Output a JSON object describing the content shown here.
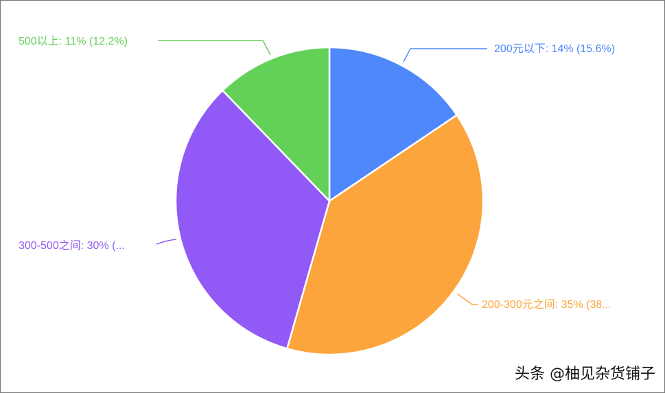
{
  "chart_data": {
    "type": "pie",
    "title": "",
    "start_angle": "top, clockwise",
    "slices": [
      {
        "label": "200元以下",
        "value": 14,
        "percent": 15.6,
        "display": "200元以下: 14% (15.6%)",
        "color": "#4f88fb"
      },
      {
        "label": "200-300元之间",
        "value": 35,
        "percent": 38.9,
        "display": "200-300元之间: 35% (38...",
        "color": "#fca53c"
      },
      {
        "label": "300-500之间",
        "value": 30,
        "percent": 33.3,
        "display": "300-500之间: 30% (...",
        "color": "#9159f5"
      },
      {
        "label": "500以上",
        "value": 11,
        "percent": 12.2,
        "display": "500以上: 11% (12.2%)",
        "color": "#63d057"
      }
    ]
  },
  "watermark": "头条 @柚见杂货铺子"
}
